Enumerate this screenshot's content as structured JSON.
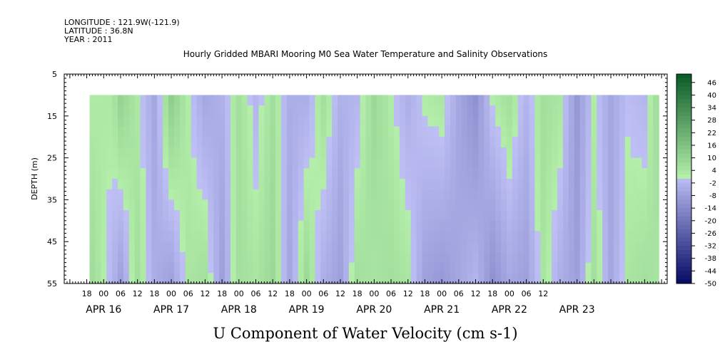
{
  "header": {
    "longitude": "LONGITUDE : 121.9W(-121.9)",
    "latitude": "LATITUDE : 36.8N",
    "year": "YEAR : 2011"
  },
  "chart_data": {
    "type": "heatmap",
    "title": "Hourly Gridded MBARI Mooring M0 Sea Water Temperature and Salinity Observations",
    "xlabel": "U Component of Water Velocity (cm s-1)",
    "ylabel": "DEPTH (m)",
    "ylim": [
      55,
      5
    ],
    "y_ticks": [
      5,
      15,
      25,
      35,
      45,
      55
    ],
    "x_range_hours": [
      -14,
      200
    ],
    "data_x_range_hours": [
      -5,
      197
    ],
    "data_depth_range_m": [
      10,
      55
    ],
    "x_hour_ticks": [
      "18",
      "00",
      "06",
      "12",
      "18",
      "00",
      "06",
      "12",
      "18",
      "00",
      "06",
      "12",
      "18",
      "00",
      "06",
      "12",
      "18",
      "00",
      "06",
      "12",
      "18",
      "00",
      "06",
      "12",
      "18",
      "00",
      "06",
      "12"
    ],
    "day_labels": [
      "APR 16",
      "APR 17",
      "APR 18",
      "APR 19",
      "APR 20",
      "APR 21",
      "APR 22",
      "APR 23"
    ],
    "colorbar": {
      "min": -50,
      "max": 50,
      "tick_labels": [
        "46",
        "40",
        "34",
        "28",
        "22",
        "16",
        "10",
        "4",
        "-2",
        "-8",
        "-14",
        "-20",
        "-26",
        "-32",
        "-38",
        "-44",
        "-50"
      ]
    },
    "field_profile": {
      "hours": [
        -5,
        3,
        6,
        12,
        18,
        24,
        30,
        36,
        42,
        48,
        54,
        60,
        66,
        72,
        78,
        84,
        90,
        96,
        102,
        108,
        114,
        120,
        126,
        132,
        138,
        144,
        150,
        156,
        162,
        168,
        174,
        180,
        186,
        192,
        197
      ],
      "upper_u": [
        2,
        3,
        10,
        3,
        -6,
        12,
        2,
        -6,
        -3,
        6,
        -2,
        6,
        -4,
        -4,
        6,
        -3,
        -2,
        8,
        2,
        -4,
        2,
        4,
        -6,
        -12,
        2,
        6,
        -2,
        6,
        4,
        -10,
        2,
        -6,
        0,
        -2,
        8
      ],
      "lower_u": [
        8,
        -2,
        -8,
        6,
        -4,
        -8,
        4,
        6,
        -8,
        6,
        4,
        8,
        -6,
        8,
        -4,
        -8,
        6,
        4,
        6,
        4,
        -8,
        -10,
        -6,
        -2,
        -12,
        -6,
        -8,
        4,
        -4,
        -8,
        6,
        -6,
        4,
        6,
        4
      ]
    }
  }
}
